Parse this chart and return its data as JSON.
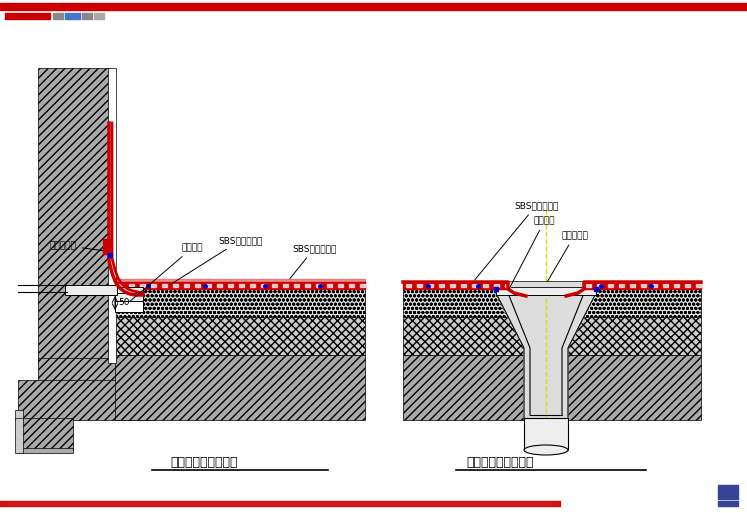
{
  "bg_color": "#ffffff",
  "left_title": "横式水落口防水做法",
  "right_title": "直式水落口防水做法",
  "annotations_left": [
    "密封嵌密封",
    "雨水篦子",
    "SBS卷材附加层",
    "SBS卷材防水层",
    "50"
  ],
  "annotations_right": [
    "SBS卷材防水层",
    "雨水篦子",
    "密封嵌密封"
  ],
  "red": "#cc0000",
  "blue": "#0000cc",
  "gray_dark": "#999999",
  "gray_mid": "#bbbbbb",
  "gray_light": "#dddddd",
  "header_accent_red": "#cc0000",
  "header_accent_gray": "#888888",
  "header_accent_blue": "#4477cc"
}
